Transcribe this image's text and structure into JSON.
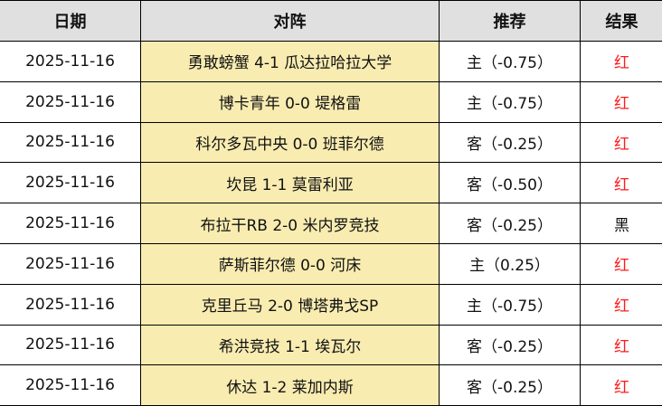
{
  "headers": [
    "日期",
    "对阵",
    "推荐",
    "结果"
  ],
  "colors": {
    "header_bg": "#e0e0e0",
    "match_bg": "#f9ecb1",
    "red": "#ff1a1a",
    "black": "#111111"
  },
  "rows": [
    {
      "date": "2025-11-16",
      "match": "勇敢螃蟹 4-1 瓜达拉哈拉大学",
      "pick": "主（-0.75）",
      "result": "红"
    },
    {
      "date": "2025-11-16",
      "match": "博卡青年 0-0 堤格雷",
      "pick": "主（-0.75）",
      "result": "红"
    },
    {
      "date": "2025-11-16",
      "match": "科尔多瓦中央 0-0 班菲尔德",
      "pick": "客（-0.25）",
      "result": "红"
    },
    {
      "date": "2025-11-16",
      "match": "坎昆 1-1 莫雷利亚",
      "pick": "客（-0.50）",
      "result": "红"
    },
    {
      "date": "2025-11-16",
      "match": "布拉干RB 2-0 米内罗竞技",
      "pick": "客（-0.25）",
      "result": "黑"
    },
    {
      "date": "2025-11-16",
      "match": "萨斯菲尔德 0-0 河床",
      "pick": "主（0.25）",
      "result": "红"
    },
    {
      "date": "2025-11-16",
      "match": "克里丘马 2-0 博塔弗戈SP",
      "pick": "主（-0.75）",
      "result": "红"
    },
    {
      "date": "2025-11-16",
      "match": "希洪竞技 1-1 埃瓦尔",
      "pick": "客（-0.25）",
      "result": "红"
    },
    {
      "date": "2025-11-16",
      "match": "休达 1-2 莱加内斯",
      "pick": "客（-0.25）",
      "result": "红"
    }
  ]
}
